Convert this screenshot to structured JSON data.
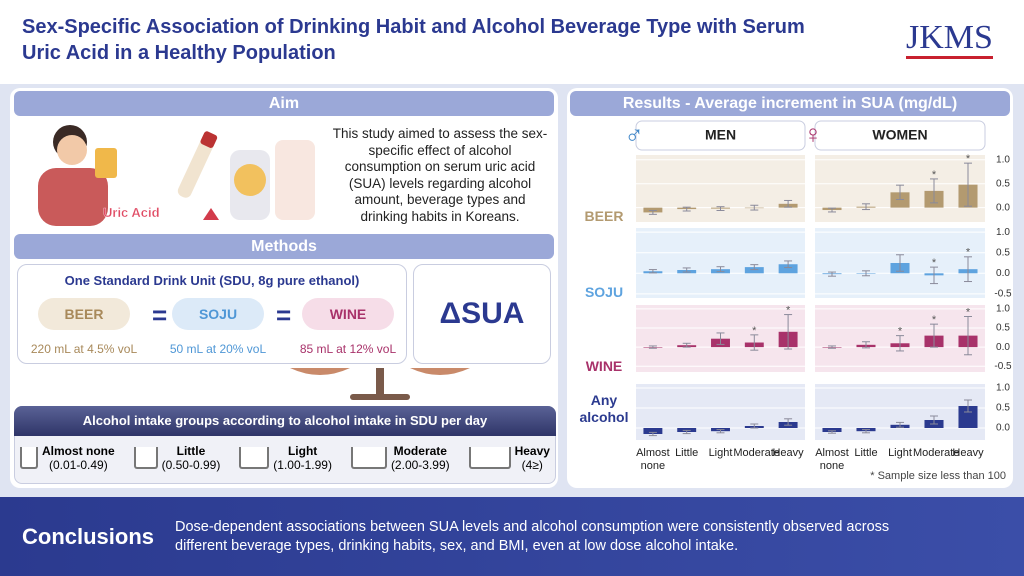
{
  "header": {
    "title": "Sex-Specific Association of Drinking Habit and Alcohol Beverage Type with Serum Uric Acid in a Healthy Population",
    "journal": "JKMS"
  },
  "aim": {
    "heading": "Aim",
    "text": "This study aimed to assess the sex-specific effect of alcohol consumption on serum uric acid (SUA) levels regarding alcohol amount, beverage types and drinking habits in Koreans.",
    "illustration_label": "Uric Acid"
  },
  "methods": {
    "heading": "Methods",
    "sdu_title": "One Standard Drink Unit (SDU, 8g pure ethanol)",
    "equals": "=",
    "drinks": [
      {
        "name": "BEER",
        "amount": "220 mL at 4.5% voL",
        "color": "#a8895a",
        "fill": "#f2e9da"
      },
      {
        "name": "SOJU",
        "amount": "50 mL at 20% voL",
        "color": "#4f97d6",
        "fill": "#dceaf8"
      },
      {
        "name": "WINE",
        "amount": "85 mL at 12% voL",
        "color": "#a8326a",
        "fill": "#f6dde8"
      }
    ],
    "outcome": "ΔSUA",
    "intake_title": "Alcohol intake groups according to alcohol intake in SDU per day",
    "groups": [
      {
        "name": "Almost none",
        "range": "(0.01-0.49)"
      },
      {
        "name": "Little",
        "range": "(0.50-0.99)"
      },
      {
        "name": "Light",
        "range": "(1.00-1.99)"
      },
      {
        "name": "Moderate",
        "range": "(2.00-3.99)"
      },
      {
        "name": "Heavy",
        "range": "(4≥)"
      }
    ]
  },
  "chart_data": {
    "type": "bar",
    "title": "Results - Average increment in SUA (mg/dL)",
    "groups": [
      {
        "symbol": "♂",
        "label": "MEN",
        "color": "#3f86c8"
      },
      {
        "symbol": "♀",
        "label": "WOMEN",
        "color": "#a8326a"
      }
    ],
    "categories": [
      "Almost none",
      "Little",
      "Light",
      "Moderate",
      "Heavy"
    ],
    "footnote": "* Sample size less than 100",
    "rows": [
      {
        "name": "BEER",
        "color": "#b39a70",
        "panel_color": "#f4eee5",
        "ylim": [
          -0.3,
          1.1
        ],
        "yticks": [
          {
            "value": 0,
            "label": "0.0"
          },
          0.5,
          {
            "value": 1,
            "label": "1.0"
          }
        ],
        "series": [
          {
            "values": [
              -0.1,
              -0.03,
              -0.02,
              0.0,
              0.08
            ],
            "errors": [
              0.04,
              0.04,
              0.04,
              0.05,
              0.07
            ]
          },
          {
            "values": [
              -0.05,
              0.02,
              0.32,
              0.35,
              0.48
            ],
            "errors": [
              0.04,
              0.06,
              0.15,
              0.25,
              0.45
            ],
            "notes": [
              null,
              null,
              null,
              "*",
              "*"
            ]
          }
        ]
      },
      {
        "name": "SOJU",
        "color": "#5ea3df",
        "panel_color": "#e6f0fa",
        "ylim": [
          -0.6,
          1.1
        ],
        "yticks": [
          -0.5,
          {
            "value": 0,
            "label": "0.0"
          },
          0.5,
          {
            "value": 1,
            "label": "1.0"
          }
        ],
        "series": [
          {
            "values": [
              0.05,
              0.08,
              0.1,
              0.15,
              0.22
            ],
            "errors": [
              0.04,
              0.05,
              0.06,
              0.06,
              0.08
            ]
          },
          {
            "values": [
              -0.02,
              0.0,
              0.25,
              -0.05,
              0.1
            ],
            "errors": [
              0.05,
              0.06,
              0.2,
              0.2,
              0.3
            ],
            "notes": [
              null,
              null,
              null,
              "*",
              "*"
            ]
          }
        ]
      },
      {
        "name": "WINE",
        "color": "#a8326a",
        "panel_color": "#f6e5ed",
        "ylim": [
          -0.65,
          1.1
        ],
        "yticks": [
          -0.5,
          {
            "value": 0,
            "label": "0.0"
          },
          0.5,
          {
            "value": 1,
            "label": "1.0"
          }
        ],
        "series": [
          {
            "values": [
              0.0,
              0.05,
              0.22,
              0.12,
              0.4
            ],
            "errors": [
              0.03,
              0.05,
              0.15,
              0.2,
              0.45
            ],
            "notes": [
              null,
              null,
              null,
              "*",
              "*"
            ]
          },
          {
            "values": [
              0.0,
              0.06,
              0.1,
              0.3,
              0.3
            ],
            "errors": [
              0.03,
              0.08,
              0.2,
              0.3,
              0.5
            ],
            "notes": [
              null,
              null,
              "*",
              "*",
              "*"
            ]
          }
        ]
      },
      {
        "name": "Any alcohol",
        "color": "#2b3a8f",
        "panel_color": "#e5e9f5",
        "ylim": [
          -0.3,
          1.1
        ],
        "yticks": [
          {
            "value": 0,
            "label": "0.0"
          },
          0.5,
          {
            "value": 1,
            "label": "1.0"
          }
        ],
        "series": [
          {
            "values": [
              -0.15,
              -0.1,
              -0.08,
              0.05,
              0.15
            ],
            "errors": [
              0.04,
              0.04,
              0.04,
              0.05,
              0.08
            ]
          },
          {
            "values": [
              -0.1,
              -0.08,
              0.08,
              0.2,
              0.55
            ],
            "errors": [
              0.03,
              0.04,
              0.06,
              0.1,
              0.15
            ]
          }
        ]
      }
    ]
  },
  "conclusions": {
    "heading": "Conclusions",
    "text": "Dose-dependent associations between SUA levels and alcohol consumption were consistently observed across different beverage types, drinking habits, sex, and BMI, even at low dose alcohol intake."
  }
}
